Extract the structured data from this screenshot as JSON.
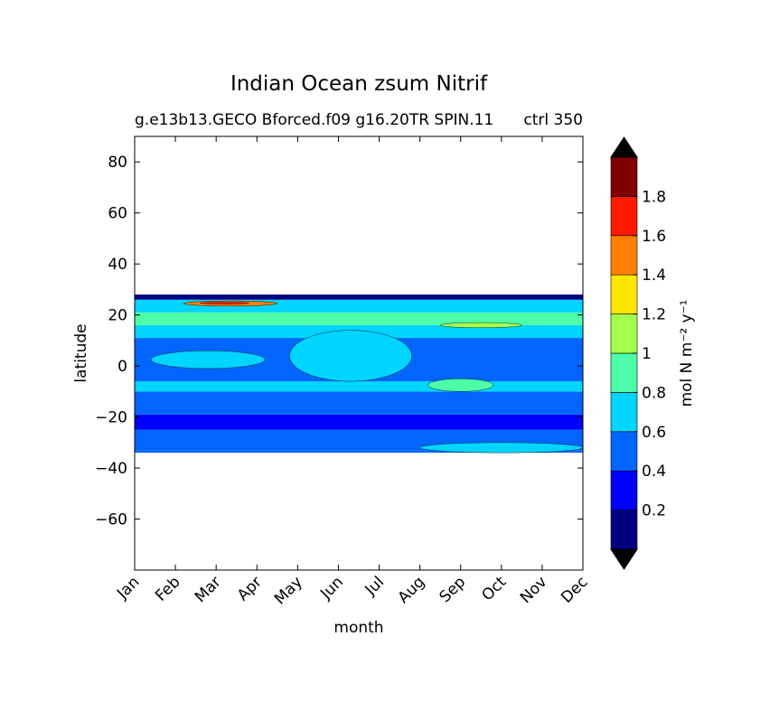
{
  "chart_data": {
    "type": "heatmap",
    "subtype": "filled-contour",
    "title": "Indian Ocean zsum Nitrif",
    "subtitle_left": "g.e13b13.GECO Bforced.f09 g16.20TR SPIN.11",
    "subtitle_right": "ctrl 350",
    "xlabel": "month",
    "ylabel": "latitude",
    "x_categories": [
      "Jan",
      "Feb",
      "Mar",
      "Apr",
      "May",
      "Jun",
      "Jul",
      "Aug",
      "Sep",
      "Oct",
      "Nov",
      "Dec"
    ],
    "xlim": [
      1,
      12
    ],
    "ylim": [
      -80,
      90
    ],
    "y_ticks": [
      80,
      60,
      40,
      20,
      0,
      -20,
      -40,
      -60
    ],
    "y_tick_labels": [
      "80",
      "60",
      "40",
      "20",
      "0",
      "−20",
      "−40",
      "−60"
    ],
    "data_lat_range": [
      -34,
      28
    ],
    "colorbar": {
      "label": "mol N m⁻² y⁻¹",
      "levels": [
        0,
        0.2,
        0.4,
        0.6,
        0.8,
        1.0,
        1.2,
        1.4,
        1.6,
        1.8,
        2.0
      ],
      "tick_values": [
        0.2,
        0.4,
        0.6,
        0.8,
        1.0,
        1.2,
        1.4,
        1.6,
        1.8
      ],
      "tick_labels": [
        "0.2",
        "0.4",
        "0.6",
        "0.8",
        "1",
        "1.2",
        "1.4",
        "1.6",
        "1.8"
      ],
      "colors": [
        "#000080",
        "#0000ff",
        "#0066ff",
        "#00d5ff",
        "#4dffa6",
        "#a6ff4d",
        "#ffe500",
        "#ff7f00",
        "#ff1a00",
        "#800000"
      ],
      "extend": "both"
    },
    "bands": [
      {
        "name": "south-edge",
        "level_index": 2,
        "lat": [
          -34,
          -33
        ]
      },
      {
        "name": "southern-subtropics",
        "level_index": 2,
        "lat": [
          -33,
          -25
        ]
      },
      {
        "name": "southern-low",
        "level_index": 1,
        "lat": [
          -25,
          -19
        ]
      },
      {
        "name": "south-mid",
        "level_index": 2,
        "lat": [
          -19,
          -10
        ]
      },
      {
        "name": "tropics-south",
        "level_index": 3,
        "lat": [
          -10,
          -6
        ]
      },
      {
        "name": "equatorial",
        "level_index": 2,
        "lat": [
          -6,
          11
        ]
      },
      {
        "name": "north-tropics",
        "level_index": 3,
        "lat": [
          11,
          16
        ]
      },
      {
        "name": "arabian-sea",
        "level_index": 4,
        "lat": [
          16,
          21
        ]
      },
      {
        "name": "north-edge",
        "level_index": 3,
        "lat": [
          21,
          26
        ]
      },
      {
        "name": "cap",
        "level_index": 0,
        "lat": [
          26,
          28
        ]
      }
    ],
    "features": [
      {
        "name": "late-year-southern-rise",
        "level_index": 3,
        "months": [
          8,
          12
        ],
        "lat": [
          -34,
          -30
        ]
      },
      {
        "name": "equatorial-patch",
        "level_index": 3,
        "months": [
          1.4,
          4.2
        ],
        "lat": [
          -1,
          6
        ]
      },
      {
        "name": "central-indian-bulge",
        "level_index": 3,
        "months": [
          4.8,
          7.8
        ],
        "lat": [
          -6,
          14
        ]
      },
      {
        "name": "southern-tropical-patch",
        "level_index": 4,
        "months": [
          8.2,
          9.8
        ],
        "lat": [
          -10,
          -5
        ]
      },
      {
        "name": "northern-patch",
        "level_index": 5,
        "months": [
          8.5,
          10.5
        ],
        "lat": [
          15,
          17
        ]
      },
      {
        "name": "spring-maximum",
        "level_index": 7,
        "months": [
          2.2,
          4.5
        ],
        "lat": [
          23.5,
          25.5
        ]
      },
      {
        "name": "spring-peak",
        "level_index": 8,
        "months": [
          2.6,
          3.8
        ],
        "lat": [
          24.3,
          25
        ]
      }
    ]
  }
}
